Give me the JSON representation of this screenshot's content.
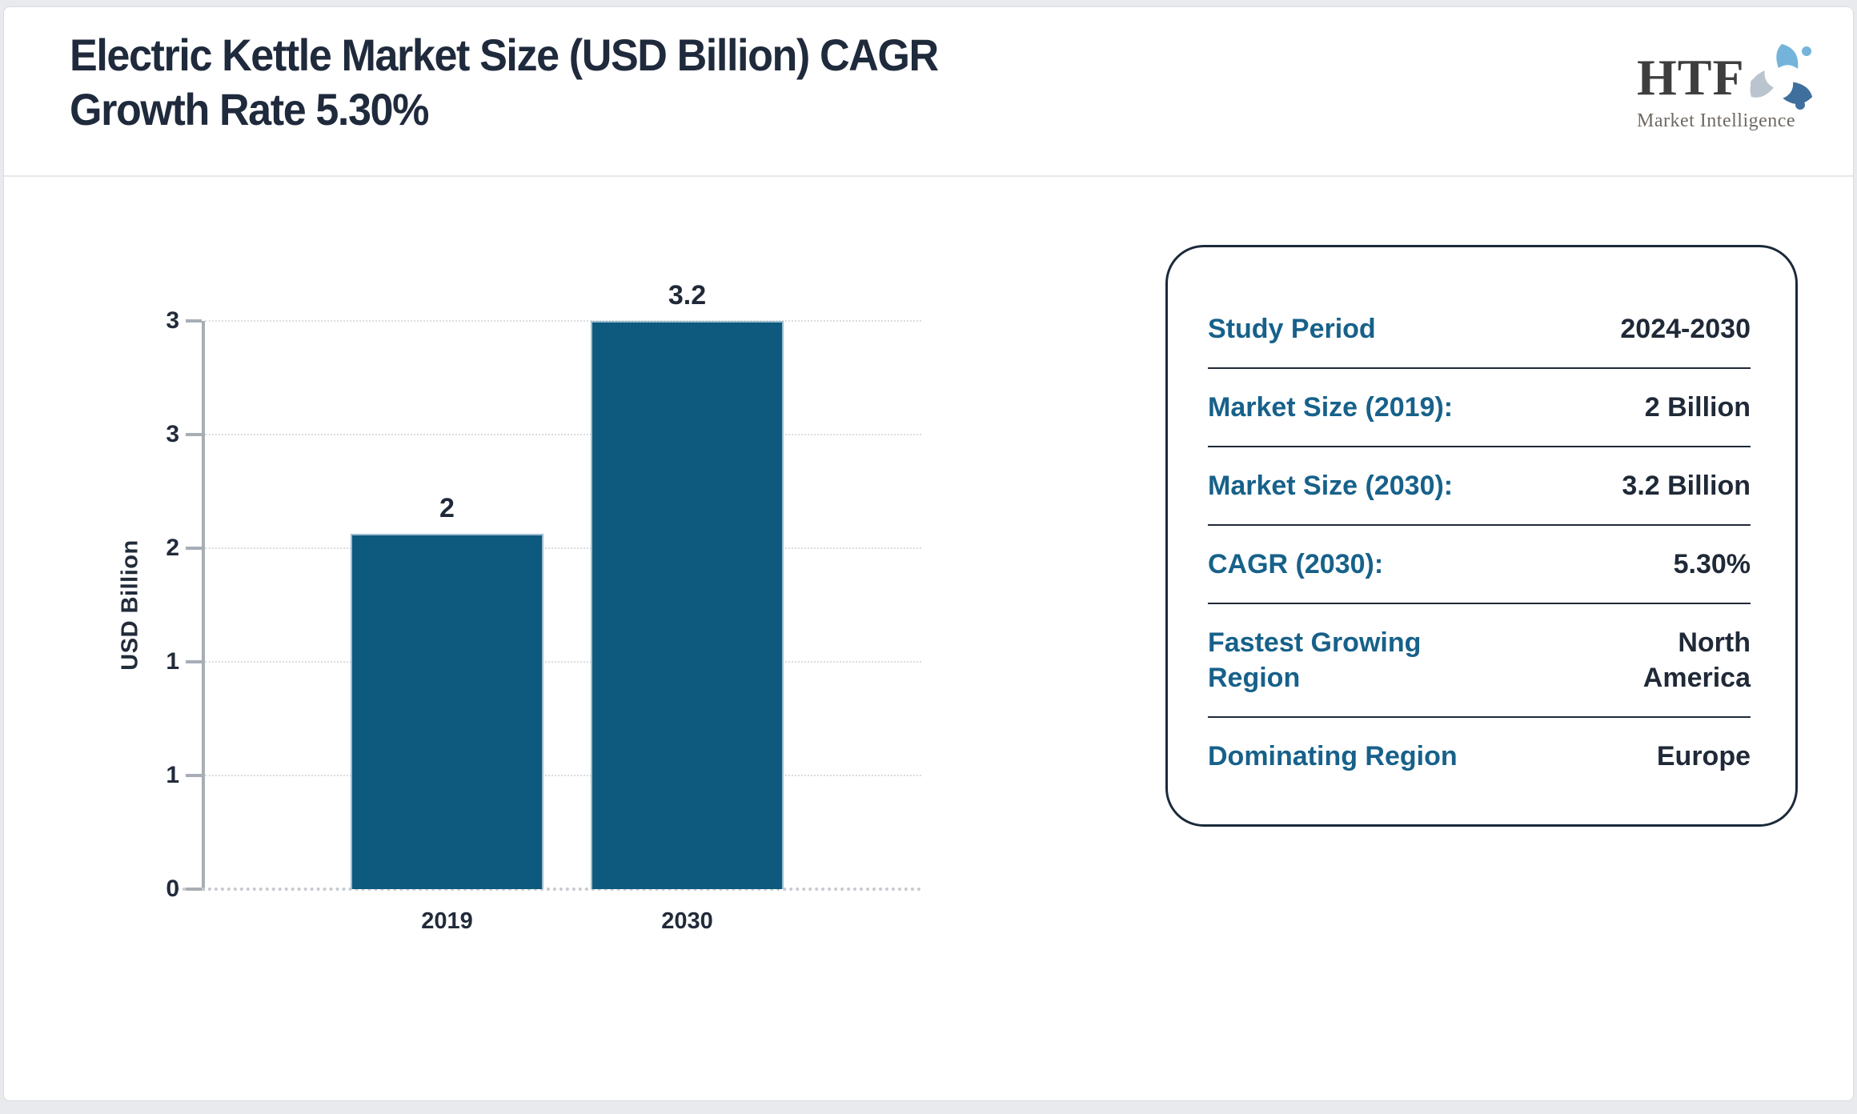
{
  "header": {
    "title_line1": "Electric Kettle Market Size (USD Billion) CAGR",
    "title_line2": "Growth Rate 5.30%"
  },
  "logo": {
    "text": "HTF",
    "subtext": "Market Intelligence",
    "swirl_colors": [
      "#74b4da",
      "#3f6f9d",
      "#b9c4ce"
    ]
  },
  "chart_data": {
    "type": "bar",
    "title": "Electric Kettle Market Size (USD Billion) CAGR Growth Rate 5.30%",
    "categories": [
      "2019",
      "2030"
    ],
    "values": [
      2,
      3.2
    ],
    "bar_labels": [
      "2",
      "3.2"
    ],
    "xlabel": "",
    "ylabel": "USD Billion",
    "ylim": [
      0,
      3.2
    ],
    "ytick_values": [
      0,
      0.64,
      1.28,
      1.92,
      2.56,
      3.2
    ],
    "ytick_labels": [
      "0",
      "1",
      "1",
      "2",
      "3",
      "3"
    ],
    "grid": "horizontal dotted",
    "legend": "none",
    "bar_color": "#0E5A7E",
    "bar_border_color": "#9FBECF",
    "axis_color": "#A8AEB6",
    "label_color": "#1F2937"
  },
  "panel": {
    "rows": [
      {
        "label": "Study Period",
        "value": "2024-2030"
      },
      {
        "label": "Market Size (2019):",
        "value": "2 Billion"
      },
      {
        "label": "Market Size (2030):",
        "value": "3.2 Billion"
      },
      {
        "label": "CAGR (2030):",
        "value": "5.30%"
      },
      {
        "label": "Fastest Growing Region",
        "value": "North America"
      },
      {
        "label": "Dominating Region",
        "value": "Europe"
      }
    ],
    "label_color": "#17618A",
    "value_color": "#1F2937"
  }
}
